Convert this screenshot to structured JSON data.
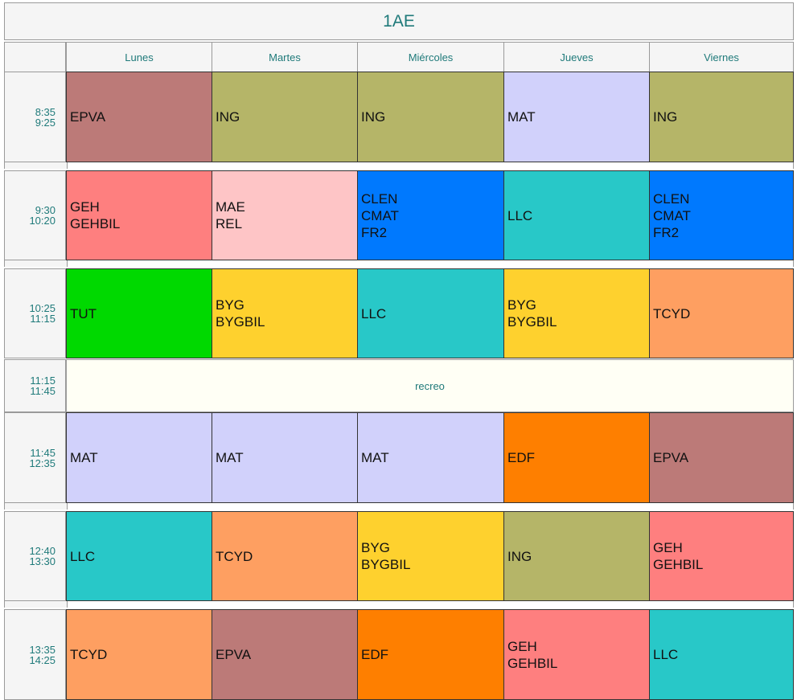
{
  "title": "1AE",
  "days": [
    "Lunes",
    "Martes",
    "Miércoles",
    "Jueves",
    "Viernes"
  ],
  "times": [
    [
      "8:35",
      "9:25"
    ],
    [
      "9:30",
      "10:20"
    ],
    [
      "10:25",
      "11:15"
    ],
    [
      "11:15",
      "11:45"
    ],
    [
      "11:45",
      "12:35"
    ],
    [
      "12:40",
      "13:30"
    ],
    [
      "13:35",
      "14:25"
    ]
  ],
  "break_label": "recreo",
  "colors": {
    "EPVA": "#bc7a78",
    "ING": "#b5b568",
    "MAT": "#d1d1fb",
    "GEH": "#fe7f7f",
    "MAE": "#fec5c6",
    "CLEN": "#0079fe",
    "LLC": "#28c8c8",
    "TUT": "#00d900",
    "BYG": "#fed12e",
    "TCYD": "#fe9f61",
    "EDF": "#fe7f00"
  },
  "schedule": [
    [
      [
        "EPVA"
      ],
      [
        "ING"
      ],
      [
        "ING"
      ],
      [
        "MAT"
      ],
      [
        "ING"
      ]
    ],
    [
      [
        "GEH",
        "GEHBIL"
      ],
      [
        "MAE",
        "REL"
      ],
      [
        "CLEN",
        "CMAT",
        "FR2"
      ],
      [
        "LLC"
      ],
      [
        "CLEN",
        "CMAT",
        "FR2"
      ]
    ],
    [
      [
        "TUT"
      ],
      [
        "BYG",
        "BYGBIL"
      ],
      [
        "LLC"
      ],
      [
        "BYG",
        "BYGBIL"
      ],
      [
        "TCYD"
      ]
    ],
    null,
    [
      [
        "MAT"
      ],
      [
        "MAT"
      ],
      [
        "MAT"
      ],
      [
        "EDF"
      ],
      [
        "EPVA"
      ]
    ],
    [
      [
        "LLC"
      ],
      [
        "TCYD"
      ],
      [
        "BYG",
        "BYGBIL"
      ],
      [
        "ING"
      ],
      [
        "GEH",
        "GEHBIL"
      ]
    ],
    [
      [
        "TCYD"
      ],
      [
        "EPVA"
      ],
      [
        "EDF"
      ],
      [
        "GEH",
        "GEHBIL"
      ],
      [
        "LLC"
      ]
    ]
  ]
}
